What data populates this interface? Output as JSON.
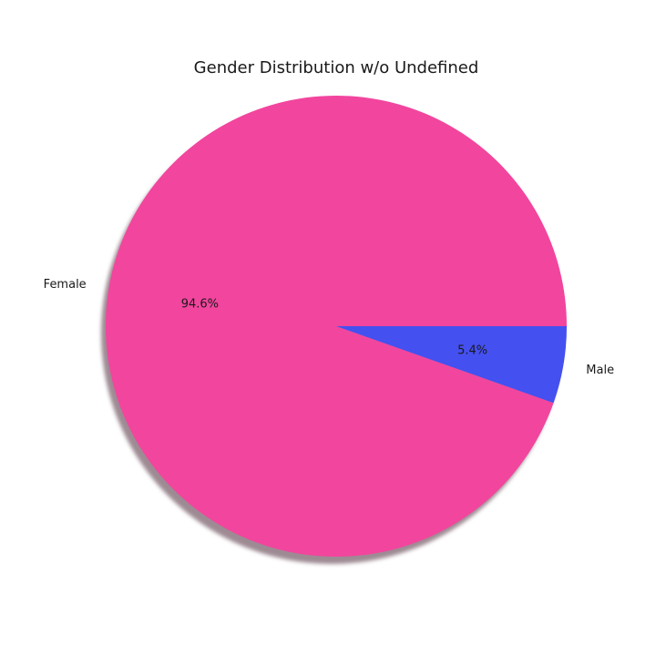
{
  "chart_data": {
    "type": "pie",
    "title": "Gender Distribution w/o Undefined",
    "shadow": true,
    "start_angle_deg": 0,
    "direction": "counterclockwise",
    "slices": [
      {
        "label": "Female",
        "value": 94.6,
        "pct_label": "94.6%",
        "color": "#f2459e"
      },
      {
        "label": "Male",
        "value": 5.4,
        "pct_label": "5.4%",
        "color": "#4450f0"
      }
    ]
  }
}
